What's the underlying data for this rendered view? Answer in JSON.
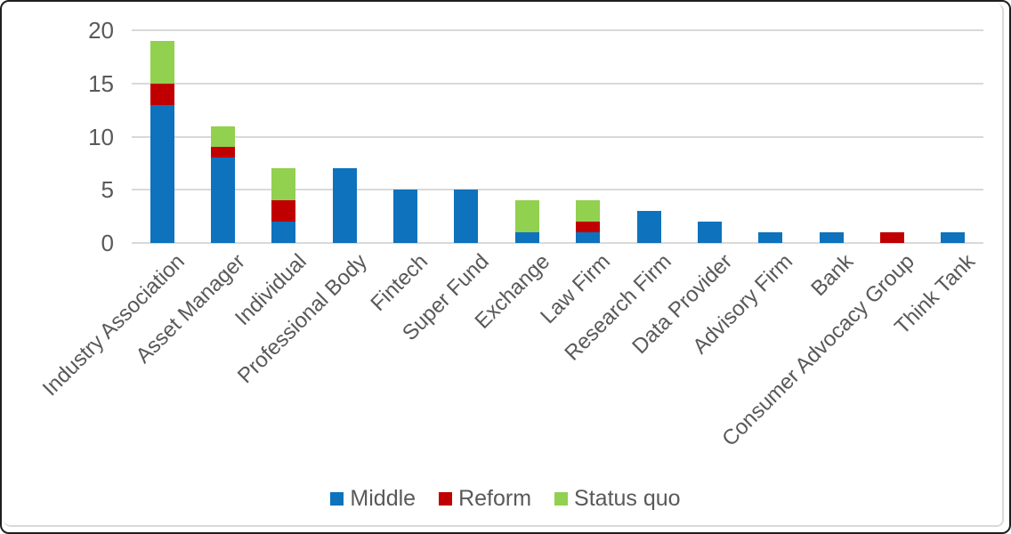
{
  "window": {
    "background": "#ffffff",
    "outer_border_color": "#1f1f1f",
    "inner_frame_color": "#d9d9d9"
  },
  "chart_data": {
    "type": "bar",
    "stacked": true,
    "title": "",
    "xlabel": "",
    "ylabel": "",
    "categories": [
      "Industry Association",
      "Asset Manager",
      "Individual",
      "Professional Body",
      "Fintech",
      "Super Fund",
      "Exchange",
      "Law Firm",
      "Research Firm",
      "Data Provider",
      "Advisory Firm",
      "Bank",
      "Consumer Advocacy Group",
      "Think Tank"
    ],
    "series": [
      {
        "name": "Middle",
        "color": "#0e72bd",
        "values": [
          13,
          8,
          2,
          7,
          5,
          5,
          1,
          1,
          3,
          2,
          1,
          1,
          0,
          1
        ]
      },
      {
        "name": "Reform",
        "color": "#c00000",
        "values": [
          2,
          1,
          2,
          0,
          0,
          0,
          0,
          1,
          0,
          0,
          0,
          0,
          1,
          0
        ]
      },
      {
        "name": "Status quo",
        "color": "#92d050",
        "values": [
          4,
          2,
          3,
          0,
          0,
          0,
          3,
          2,
          0,
          0,
          0,
          0,
          0,
          0
        ]
      }
    ],
    "ylim": [
      0,
      20
    ],
    "yticks": [
      0,
      5,
      10,
      15,
      20
    ],
    "grid": true,
    "legend_position": "bottom-center",
    "axis_text_color": "#595959",
    "gridline_color": "#d9d9d9"
  }
}
